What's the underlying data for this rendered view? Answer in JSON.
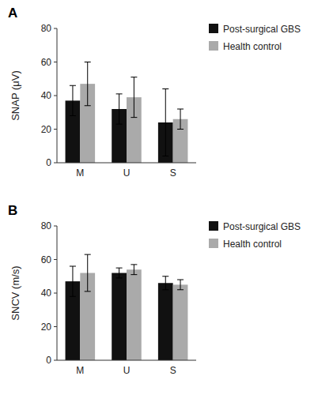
{
  "chart_data": [
    {
      "type": "bar",
      "title": "A",
      "ylabel": "SNAP (μV)",
      "categories": [
        "M",
        "U",
        "S"
      ],
      "series": [
        {
          "name": "Post-surgical GBS",
          "color": "#111111",
          "values": [
            37,
            32,
            24
          ],
          "errors": [
            9,
            9,
            20
          ]
        },
        {
          "name": "Health control",
          "color": "#aaaaaa",
          "values": [
            47,
            39,
            26
          ],
          "errors": [
            13,
            12,
            6
          ]
        }
      ],
      "ylim": [
        0,
        80
      ],
      "yticks": [
        0,
        20,
        40,
        60,
        80
      ],
      "grid": false,
      "legend": "right"
    },
    {
      "type": "bar",
      "title": "B",
      "ylabel": "SNCV (m/s)",
      "categories": [
        "M",
        "U",
        "S"
      ],
      "series": [
        {
          "name": "Post-surgical GBS",
          "color": "#111111",
          "values": [
            47,
            52,
            46
          ],
          "errors": [
            9,
            3,
            4
          ]
        },
        {
          "name": "Health control",
          "color": "#aaaaaa",
          "values": [
            52,
            54,
            45
          ],
          "errors": [
            11,
            3,
            3
          ]
        }
      ],
      "ylim": [
        0,
        80
      ],
      "yticks": [
        0,
        20,
        40,
        60,
        80
      ],
      "grid": false,
      "legend": "right"
    }
  ]
}
